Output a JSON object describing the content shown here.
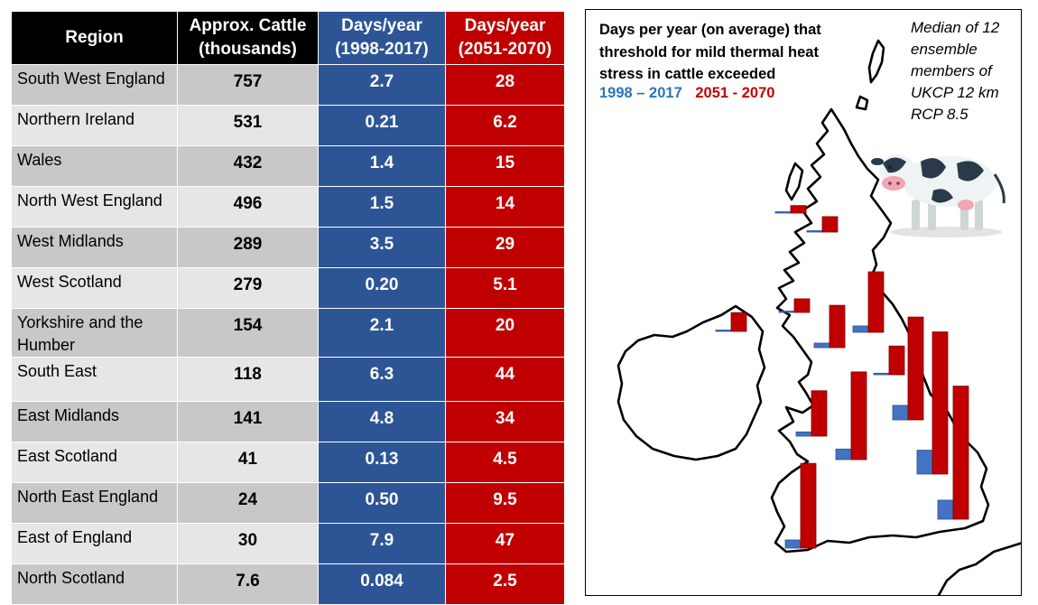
{
  "table": {
    "headers": {
      "region": "Region",
      "cattle": "Approx. Cattle (thousands)",
      "hist": "Days/year (1998-2017)",
      "fut": "Days/year (2051-2070)"
    },
    "rows": [
      {
        "region": "South West England",
        "cattle": "757",
        "hist": "2.7",
        "fut": "28"
      },
      {
        "region": "Northern Ireland",
        "cattle": "531",
        "hist": "0.21",
        "fut": "6.2"
      },
      {
        "region": "Wales",
        "cattle": "432",
        "hist": "1.4",
        "fut": "15"
      },
      {
        "region": "North West England",
        "cattle": "496",
        "hist": "1.5",
        "fut": "14"
      },
      {
        "region": "West Midlands",
        "cattle": "289",
        "hist": "3.5",
        "fut": "29"
      },
      {
        "region": "West Scotland",
        "cattle": "279",
        "hist": "0.20",
        "fut": "5.1"
      },
      {
        "region": "Yorkshire and the Humber",
        "cattle": "154",
        "hist": "2.1",
        "fut": "20"
      },
      {
        "region": "South East",
        "cattle": "118",
        "hist": "6.3",
        "fut": "44"
      },
      {
        "region": "East Midlands",
        "cattle": "141",
        "hist": "4.8",
        "fut": "34"
      },
      {
        "region": "East Scotland",
        "cattle": "41",
        "hist": "0.13",
        "fut": "4.5"
      },
      {
        "region": "North East England",
        "cattle": "24",
        "hist": "0.50",
        "fut": "9.5"
      },
      {
        "region": "East of England",
        "cattle": "30",
        "hist": "7.9",
        "fut": "47"
      },
      {
        "region": "North Scotland",
        "cattle": "7.6",
        "hist": "0.084",
        "fut": "2.5"
      }
    ]
  },
  "map": {
    "title": "Days per year (on average) that threshold for mild thermal heat stress in cattle exceeded",
    "legend_hist": "1998 – 2017",
    "legend_fut": "2051 - 2070",
    "note": "Median of 12 ensemble members of UKCP 12 km RCP 8.5",
    "colors": {
      "hist": "#4472c4",
      "fut": "#c00000",
      "hist_label": "#2e75b6"
    }
  },
  "chart_data": {
    "type": "bar",
    "categories": [
      "South West England",
      "Northern Ireland",
      "Wales",
      "North West England",
      "West Midlands",
      "West Scotland",
      "Yorkshire and the Humber",
      "South East",
      "East Midlands",
      "East Scotland",
      "North East England",
      "East of England",
      "North Scotland"
    ],
    "series": [
      {
        "name": "1998 – 2017",
        "values": [
          2.7,
          0.21,
          1.4,
          1.5,
          3.5,
          0.2,
          2.1,
          6.3,
          4.8,
          0.13,
          0.5,
          7.9,
          0.084
        ]
      },
      {
        "name": "2051 - 2070",
        "values": [
          28,
          6.2,
          15,
          14,
          29,
          5.1,
          20,
          44,
          34,
          4.5,
          9.5,
          47,
          2.5
        ]
      }
    ],
    "title": "Days per year (on average) that threshold for mild thermal heat stress in cattle exceeded",
    "xlabel": "",
    "ylabel": ""
  }
}
